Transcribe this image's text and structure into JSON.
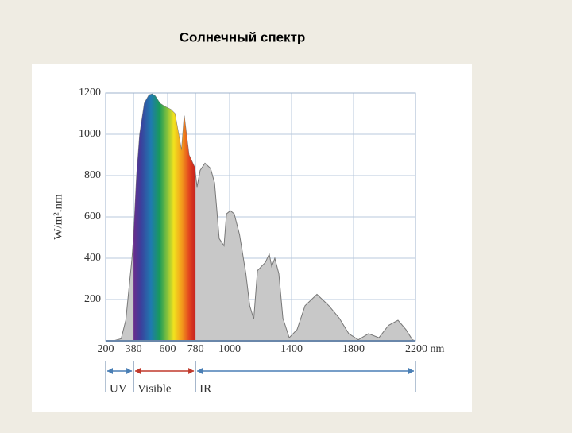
{
  "chart_data": {
    "type": "area",
    "title": "Солнечный спектр",
    "ylabel": "W/m².nm",
    "x": [
      250,
      300,
      330,
      350,
      370,
      380,
      400,
      420,
      450,
      480,
      500,
      520,
      550,
      580,
      620,
      647,
      690,
      707,
      738,
      775,
      790,
      810,
      841,
      877,
      903,
      933,
      964,
      980,
      1005,
      1030,
      1064,
      1105,
      1130,
      1156,
      1180,
      1231,
      1256,
      1272,
      1292,
      1318,
      1344,
      1385,
      1436,
      1487,
      1564,
      1641,
      1708,
      1769,
      1831,
      1897,
      1964,
      2026,
      2087,
      2138,
      2180,
      2200
    ],
    "values": [
      0,
      10,
      100,
      250,
      400,
      500,
      800,
      1000,
      1150,
      1190,
      1195,
      1185,
      1150,
      1135,
      1120,
      1100,
      920,
      1090,
      900,
      840,
      745,
      825,
      860,
      835,
      765,
      495,
      460,
      615,
      630,
      615,
      515,
      325,
      170,
      105,
      340,
      380,
      420,
      360,
      400,
      325,
      110,
      15,
      55,
      170,
      225,
      170,
      110,
      35,
      5,
      35,
      15,
      75,
      100,
      55,
      5,
      0
    ],
    "color": "#c8c8c8",
    "xlim": [
      200,
      2200
    ],
    "ylim": [
      0,
      1200
    ],
    "xticks": [
      200,
      380,
      600,
      780,
      1000,
      1400,
      1800,
      {
        "value": 2200,
        "label": "2200 nm"
      }
    ],
    "yticks": [
      200,
      400,
      600,
      800,
      1000,
      1200
    ],
    "grid": true,
    "bands": [
      {
        "label": "UV",
        "start": 200,
        "end": 380,
        "color": "#4a7fb5"
      },
      {
        "label": "Visible",
        "start": 380,
        "end": 780,
        "color": "#c0392b"
      },
      {
        "label": "IR",
        "start": 780,
        "end": 2200,
        "color": "#4a7fb5"
      }
    ]
  }
}
